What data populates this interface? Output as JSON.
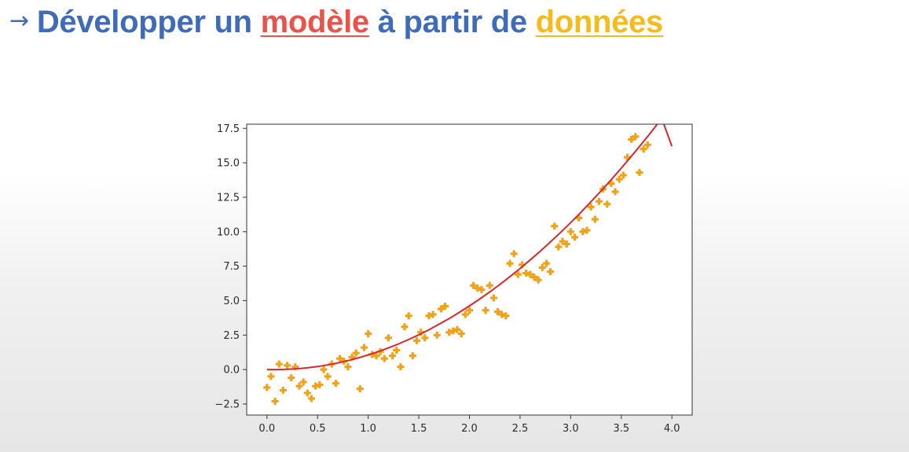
{
  "slide": {
    "title_arrow": "→",
    "title_part1": "Développer un",
    "title_keyword1": "modèle",
    "title_part2": "à partir de",
    "title_keyword2": "données"
  },
  "colors": {
    "title": "#3f6cb8",
    "keyword_model": "#e8544b",
    "keyword_data": "#f5bb1d",
    "points": "#f0a31a",
    "model_curve": "#d8282c"
  },
  "chart_data": {
    "type": "scatter",
    "title": "",
    "xlabel": "",
    "ylabel": "",
    "xlim": [
      -0.2,
      4.2
    ],
    "ylim": [
      -3.3,
      17.8
    ],
    "xticks": [
      0.0,
      0.5,
      1.0,
      1.5,
      2.0,
      2.5,
      3.0,
      3.5,
      4.0
    ],
    "xtick_labels": [
      "0.0",
      "0.5",
      "1.0",
      "1.5",
      "2.0",
      "2.5",
      "3.0",
      "3.5",
      "4.0"
    ],
    "yticks": [
      -2.5,
      0.0,
      2.5,
      5.0,
      7.5,
      10.0,
      12.5,
      15.0,
      17.5
    ],
    "ytick_labels": [
      "−2.5",
      "0.0",
      "2.5",
      "5.0",
      "7.5",
      "10.0",
      "12.5",
      "15.0",
      "17.5"
    ],
    "grid": false,
    "series": [
      {
        "kind": "scatter",
        "marker": "plus",
        "color": "#f0a31a",
        "points": [
          [
            0.0,
            -1.3
          ],
          [
            0.04,
            -0.5
          ],
          [
            0.08,
            -2.3
          ],
          [
            0.12,
            0.4
          ],
          [
            0.16,
            -1.5
          ],
          [
            0.2,
            0.3
          ],
          [
            0.24,
            -0.6
          ],
          [
            0.28,
            0.2
          ],
          [
            0.32,
            -1.2
          ],
          [
            0.36,
            -0.9
          ],
          [
            0.4,
            -1.7
          ],
          [
            0.44,
            -2.1
          ],
          [
            0.48,
            -1.2
          ],
          [
            0.52,
            -1.1
          ],
          [
            0.56,
            0.0
          ],
          [
            0.6,
            -0.5
          ],
          [
            0.64,
            0.4
          ],
          [
            0.68,
            -1.0
          ],
          [
            0.72,
            0.8
          ],
          [
            0.76,
            0.6
          ],
          [
            0.8,
            0.2
          ],
          [
            0.84,
            0.9
          ],
          [
            0.88,
            1.2
          ],
          [
            0.92,
            -1.4
          ],
          [
            0.96,
            1.6
          ],
          [
            1.0,
            2.6
          ],
          [
            1.04,
            1.1
          ],
          [
            1.08,
            1.0
          ],
          [
            1.12,
            1.3
          ],
          [
            1.16,
            0.8
          ],
          [
            1.2,
            2.3
          ],
          [
            1.24,
            1.0
          ],
          [
            1.28,
            1.4
          ],
          [
            1.32,
            0.2
          ],
          [
            1.36,
            3.1
          ],
          [
            1.4,
            3.9
          ],
          [
            1.44,
            1.0
          ],
          [
            1.48,
            2.1
          ],
          [
            1.52,
            2.7
          ],
          [
            1.56,
            2.3
          ],
          [
            1.6,
            3.9
          ],
          [
            1.64,
            4.0
          ],
          [
            1.68,
            2.5
          ],
          [
            1.72,
            4.4
          ],
          [
            1.76,
            4.6
          ],
          [
            1.8,
            2.7
          ],
          [
            1.84,
            2.8
          ],
          [
            1.88,
            2.9
          ],
          [
            1.92,
            2.6
          ],
          [
            1.96,
            4.0
          ],
          [
            2.0,
            4.3
          ],
          [
            2.04,
            6.1
          ],
          [
            2.08,
            5.9
          ],
          [
            2.12,
            5.8
          ],
          [
            2.16,
            4.3
          ],
          [
            2.2,
            6.1
          ],
          [
            2.24,
            5.2
          ],
          [
            2.28,
            4.2
          ],
          [
            2.32,
            4.0
          ],
          [
            2.36,
            3.9
          ],
          [
            2.4,
            7.7
          ],
          [
            2.44,
            8.4
          ],
          [
            2.48,
            6.9
          ],
          [
            2.52,
            7.6
          ],
          [
            2.56,
            7.0
          ],
          [
            2.6,
            6.9
          ],
          [
            2.64,
            6.7
          ],
          [
            2.68,
            6.5
          ],
          [
            2.72,
            7.4
          ],
          [
            2.76,
            7.7
          ],
          [
            2.8,
            7.1
          ],
          [
            2.84,
            10.4
          ],
          [
            2.88,
            8.9
          ],
          [
            2.92,
            9.3
          ],
          [
            2.96,
            9.1
          ],
          [
            3.0,
            10.0
          ],
          [
            3.04,
            9.6
          ],
          [
            3.08,
            11.0
          ],
          [
            3.12,
            10.0
          ],
          [
            3.16,
            10.1
          ],
          [
            3.2,
            11.8
          ],
          [
            3.24,
            10.9
          ],
          [
            3.28,
            12.2
          ],
          [
            3.32,
            13.1
          ],
          [
            3.36,
            12.0
          ],
          [
            3.4,
            13.5
          ],
          [
            3.44,
            12.9
          ],
          [
            3.48,
            13.8
          ],
          [
            3.52,
            14.1
          ],
          [
            3.56,
            15.4
          ],
          [
            3.6,
            16.7
          ],
          [
            3.64,
            16.9
          ],
          [
            3.68,
            14.3
          ],
          [
            3.72,
            16.0
          ],
          [
            3.76,
            16.3
          ]
        ]
      },
      {
        "kind": "line",
        "color": "#d8282c",
        "x": [
          0.0,
          0.1,
          0.2,
          0.3,
          0.4,
          0.5,
          0.6,
          0.7,
          0.8,
          0.9,
          1.0,
          1.1,
          1.2,
          1.3,
          1.4,
          1.5,
          1.6,
          1.7,
          1.8,
          1.9,
          2.0,
          2.1,
          2.2,
          2.3,
          2.4,
          2.5,
          2.6,
          2.7,
          2.8,
          2.9,
          3.0,
          3.1,
          3.2,
          3.3,
          3.4,
          3.5,
          3.6,
          3.7,
          3.8,
          3.9,
          4.0
        ],
        "y": [
          0.0,
          0.0,
          0.02,
          0.06,
          0.13,
          0.22,
          0.34,
          0.48,
          0.65,
          0.84,
          1.06,
          1.3,
          1.57,
          1.86,
          2.18,
          2.52,
          2.89,
          3.29,
          3.7,
          4.15,
          4.62,
          5.11,
          5.63,
          6.17,
          6.74,
          7.33,
          7.95,
          8.59,
          9.26,
          9.95,
          10.66,
          11.4,
          12.17,
          12.96,
          13.77,
          14.61,
          15.48,
          16.37,
          17.28,
          18.22,
          16.2
        ]
      }
    ]
  }
}
